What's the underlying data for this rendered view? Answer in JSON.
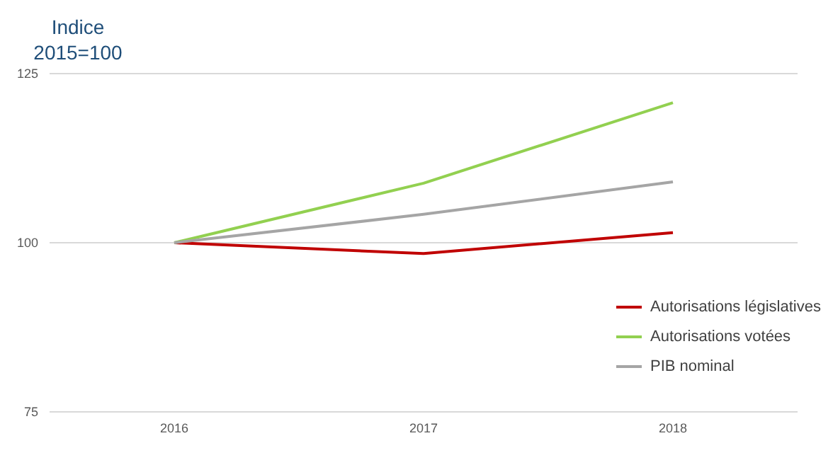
{
  "chart_data": {
    "type": "line",
    "ylabel": "Indice 2015=100",
    "categories": [
      "2016",
      "2017",
      "2018"
    ],
    "series": [
      {
        "name": "Autorisations législatives",
        "color": "#c00000",
        "values": [
          100,
          98.4,
          101.5
        ]
      },
      {
        "name": "Autorisations votées",
        "color": "#92d050",
        "values": [
          100,
          108.8,
          120.7
        ]
      },
      {
        "name": "PIB nominal",
        "color": "#a5a5a5",
        "values": [
          100,
          104.2,
          109.0
        ]
      }
    ],
    "ylim": [
      75,
      125
    ],
    "yticks": [
      75,
      100,
      125
    ],
    "grid": "y",
    "legend": "right",
    "marker": "none",
    "line_style": "solid"
  }
}
